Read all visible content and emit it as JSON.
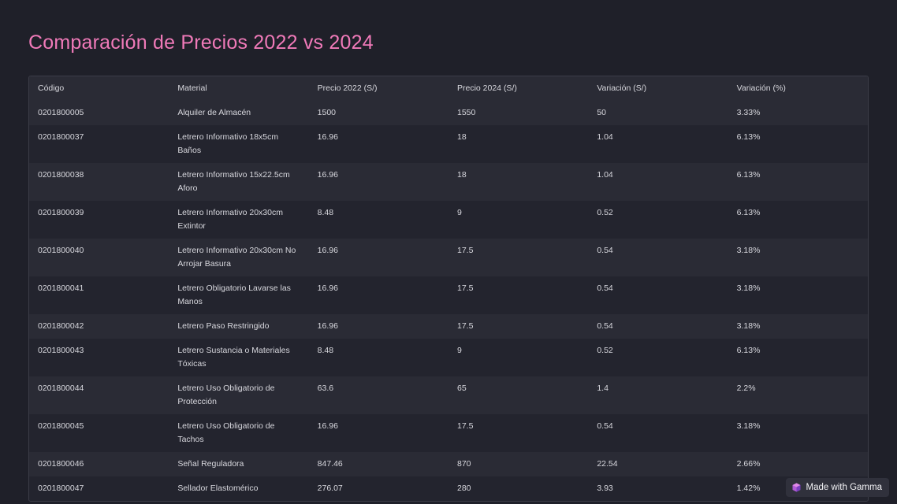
{
  "header": {
    "title": "Comparación de Precios 2022 vs 2024"
  },
  "table": {
    "columns": [
      "Código",
      "Material",
      "Precio 2022 (S/)",
      "Precio 2024 (S/)",
      "Variación (S/)",
      "Variación (%)"
    ],
    "rows": [
      [
        "0201800005",
        "Alquiler de Almacén",
        "1500",
        "1550",
        "50",
        "3.33%"
      ],
      [
        "0201800037",
        "Letrero Informativo 18x5cm Baños",
        "16.96",
        "18",
        "1.04",
        "6.13%"
      ],
      [
        "0201800038",
        "Letrero Informativo 15x22.5cm Aforo",
        "16.96",
        "18",
        "1.04",
        "6.13%"
      ],
      [
        "0201800039",
        "Letrero Informativo 20x30cm Extintor",
        "8.48",
        "9",
        "0.52",
        "6.13%"
      ],
      [
        "0201800040",
        "Letrero Informativo 20x30cm No Arrojar Basura",
        "16.96",
        "17.5",
        "0.54",
        "3.18%"
      ],
      [
        "0201800041",
        "Letrero Obligatorio Lavarse las Manos",
        "16.96",
        "17.5",
        "0.54",
        "3.18%"
      ],
      [
        "0201800042",
        "Letrero Paso Restringido",
        "16.96",
        "17.5",
        "0.54",
        "3.18%"
      ],
      [
        "0201800043",
        "Letrero Sustancia o Materiales Tóxicas",
        "8.48",
        "9",
        "0.52",
        "6.13%"
      ],
      [
        "0201800044",
        "Letrero Uso Obligatorio de Protección",
        "63.6",
        "65",
        "1.4",
        "2.2%"
      ],
      [
        "0201800045",
        "Letrero Uso Obligatorio de Tachos",
        "16.96",
        "17.5",
        "0.54",
        "3.18%"
      ],
      [
        "0201800046",
        "Señal Reguladora",
        "847.46",
        "870",
        "22.54",
        "2.66%"
      ],
      [
        "0201800047",
        "Sellador Elastomérico",
        "276.07",
        "280",
        "3.93",
        "1.42%"
      ]
    ]
  },
  "badge": {
    "text": "Made with Gamma"
  }
}
